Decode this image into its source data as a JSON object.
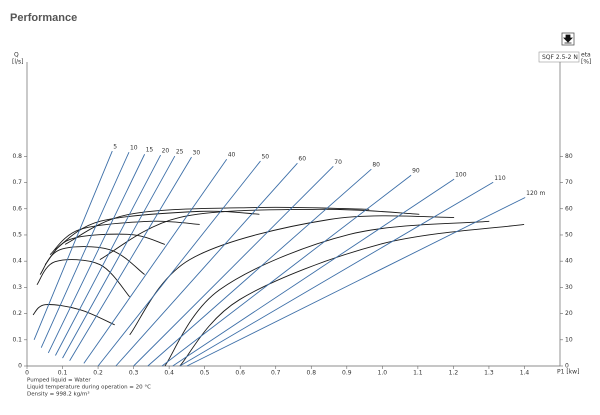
{
  "page_title": "Performance",
  "chart_data": {
    "type": "line",
    "legend_label": "SQF 2.5-2 N",
    "y_label": "Q",
    "y_unit": "[l/s]",
    "y2_label": "eta",
    "y2_unit": "[%]",
    "x_label": "P1 [kw]",
    "xlim": [
      0,
      1.5
    ],
    "ylim": [
      0,
      1.16
    ],
    "y2lim": [
      0,
      116
    ],
    "xticks": [
      0,
      0.1,
      0.2,
      0.3,
      0.4,
      0.5,
      0.6,
      0.7,
      0.8,
      0.9,
      {
        "value": 1,
        "label": "1.0"
      },
      1.1,
      1.2,
      1.3,
      1.4
    ],
    "yticks": [
      0,
      0.1,
      0.2,
      0.3,
      0.4,
      0.5,
      0.6,
      0.7,
      0.8
    ],
    "y2ticks": [
      0,
      10,
      20,
      30,
      40,
      50,
      60,
      70,
      80
    ],
    "head_color": "#3d6fa8",
    "eff_color": "#1a1a1a",
    "head_curves": [
      {
        "name": "5",
        "x": [
          0.02,
          0.24
        ],
        "y": [
          0.1,
          0.82
        ]
      },
      {
        "name": "10",
        "x": [
          0.04,
          0.287
        ],
        "y": [
          0.07,
          0.816
        ]
      },
      {
        "name": "15",
        "x": [
          0.06,
          0.331
        ],
        "y": [
          0.05,
          0.808
        ]
      },
      {
        "name": "20",
        "x": [
          0.08,
          0.376
        ],
        "y": [
          0.04,
          0.805
        ]
      },
      {
        "name": "25",
        "x": [
          0.1,
          0.416
        ],
        "y": [
          0.03,
          0.801
        ]
      },
      {
        "name": "30",
        "x": [
          0.12,
          0.463
        ],
        "y": [
          0.02,
          0.797
        ]
      },
      {
        "name": "40",
        "x": [
          0.16,
          0.562
        ],
        "y": [
          0.01,
          0.789
        ]
      },
      {
        "name": "50",
        "x": [
          0.2,
          0.657
        ],
        "y": [
          0,
          0.782
        ]
      },
      {
        "name": "60",
        "x": [
          0.25,
          0.761
        ],
        "y": [
          0,
          0.774
        ]
      },
      {
        "name": "70",
        "x": [
          0.3,
          0.862
        ],
        "y": [
          0,
          0.762
        ]
      },
      {
        "name": "80",
        "x": [
          0.34,
          0.969
        ],
        "y": [
          0,
          0.751
        ]
      },
      {
        "name": "90",
        "x": [
          0.38,
          1.081
        ],
        "y": [
          0,
          0.728
        ]
      },
      {
        "name": "100",
        "x": [
          0.41,
          1.202
        ],
        "y": [
          0,
          0.713
        ]
      },
      {
        "name": "110",
        "x": [
          0.43,
          1.312
        ],
        "y": [
          0,
          0.701
        ]
      },
      {
        "name": "120 m",
        "x": [
          0.45,
          1.402
        ],
        "y": [
          0,
          0.643
        ]
      }
    ],
    "eff_curves": [
      {
        "x": [
          0.017,
          0.051,
          0.149,
          0.247
        ],
        "y": [
          0.195,
          0.234,
          0.215,
          0.157
        ]
      },
      {
        "x": [
          0.028,
          0.079,
          0.205,
          0.289
        ],
        "y": [
          0.31,
          0.398,
          0.387,
          0.264
        ]
      },
      {
        "x": [
          0.037,
          0.093,
          0.233,
          0.331
        ],
        "y": [
          0.349,
          0.444,
          0.444,
          0.349
        ]
      },
      {
        "x": [
          0.051,
          0.121,
          0.289,
          0.388
        ],
        "y": [
          0.387,
          0.483,
          0.502,
          0.464
        ]
      },
      {
        "x": [
          0.065,
          0.149,
          0.346,
          0.486
        ],
        "y": [
          0.425,
          0.521,
          0.552,
          0.54
        ]
      },
      {
        "x": [
          0.079,
          0.205,
          0.486,
          0.654
        ],
        "y": [
          0.444,
          0.552,
          0.59,
          0.579
        ]
      },
      {
        "x": [
          0.107,
          0.289,
          0.654,
          0.963
        ],
        "y": [
          0.464,
          0.579,
          0.605,
          0.598
        ]
      },
      {
        "x": [
          0.205,
          0.43,
          0.823,
          1.104
        ],
        "y": [
          0.406,
          0.567,
          0.598,
          0.579
        ]
      },
      {
        "x": [
          0.289,
          0.458,
          0.851,
          1.202
        ],
        "y": [
          0.119,
          0.406,
          0.559,
          0.567
        ]
      },
      {
        "x": [
          0.388,
          0.542,
          0.907,
          1.301
        ],
        "y": [
          0,
          0.291,
          0.502,
          0.552
        ]
      },
      {
        "x": [
          0.43,
          0.598,
          0.992,
          1.399
        ],
        "y": [
          0,
          0.253,
          0.464,
          0.54
        ]
      }
    ]
  },
  "notes": [
    "Pumped liquid = Water",
    "Liquid temperature during operation = 20 °C",
    "Density = 998.2 kg/m³"
  ]
}
